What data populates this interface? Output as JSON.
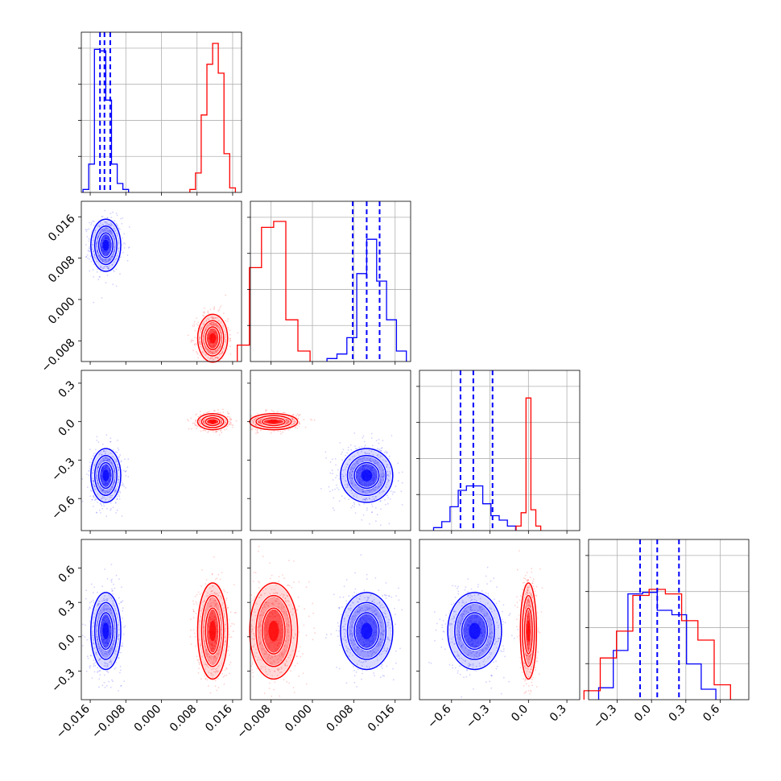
{
  "chart_data": {
    "type": "corner",
    "n_params": 4,
    "grid": true,
    "colors": {
      "series_a": "#0000ff",
      "series_b": "#ff0000"
    },
    "params": [
      {
        "range": [
          -0.018,
          0.018
        ],
        "ticks": [
          -0.016,
          -0.008,
          0.0,
          0.008,
          0.016
        ],
        "tick_labels": [
          "−0.016",
          "−0.008",
          "0.000",
          "0.008",
          "0.016"
        ]
      },
      {
        "range": [
          -0.012,
          0.019
        ],
        "ticks": [
          -0.008,
          0.0,
          0.008,
          0.016
        ],
        "tick_labels": [
          "−0.008",
          "0.000",
          "0.008",
          "0.016"
        ]
      },
      {
        "range": [
          -0.85,
          0.4
        ],
        "ticks": [
          -0.6,
          -0.3,
          0.0,
          0.3
        ],
        "tick_labels": [
          "−0.6",
          "−0.3",
          "0.0",
          "0.3"
        ]
      },
      {
        "range": [
          -0.55,
          0.85
        ],
        "ticks": [
          -0.3,
          0.0,
          0.3,
          0.6
        ],
        "tick_labels": [
          "−0.3",
          "0.0",
          "0.3",
          "0.6"
        ]
      }
    ],
    "series_a": {
      "color": "#0000ff",
      "mean": [
        -0.0125,
        0.0105,
        -0.42,
        0.05
      ],
      "sigma": [
        0.0016,
        0.0024,
        0.1,
        0.16
      ],
      "quantiles": [
        [
          -0.0138,
          -0.0128,
          -0.0115
        ],
        [
          0.0078,
          0.0105,
          0.013
        ],
        [
          -0.53,
          -0.43,
          -0.28
        ],
        [
          -0.1,
          0.05,
          0.24
        ]
      ],
      "hist": [
        [
          0.02,
          0.19,
          0.96,
          0.95,
          0.62,
          0.19,
          0.06,
          0.02
        ],
        [
          0.02,
          0.05,
          0.16,
          0.59,
          0.82,
          0.54,
          0.28,
          0.07
        ],
        [
          0.02,
          0.06,
          0.16,
          0.27,
          0.3,
          0.3,
          0.18,
          0.1,
          0.07,
          0.03
        ],
        [
          0.08,
          0.33,
          0.71,
          0.72,
          0.6,
          0.57,
          0.24,
          0.07
        ]
      ]
    },
    "series_b": {
      "color": "#ff0000",
      "mean": [
        0.0115,
        -0.0075,
        0.0,
        0.05
      ],
      "sigma": [
        0.0016,
        0.0022,
        0.03,
        0.2
      ],
      "hist": [
        [
          0.02,
          0.13,
          0.52,
          0.86,
          1.0,
          0.8,
          0.26,
          0.03
        ],
        [
          0.11,
          0.63,
          0.9,
          0.94,
          0.28,
          0.07
        ],
        [
          0.03,
          0.12,
          0.89,
          0.14,
          0.03
        ],
        [
          0.06,
          0.28,
          0.46,
          0.7,
          0.74,
          0.71,
          0.53,
          0.4,
          0.1
        ]
      ]
    }
  }
}
